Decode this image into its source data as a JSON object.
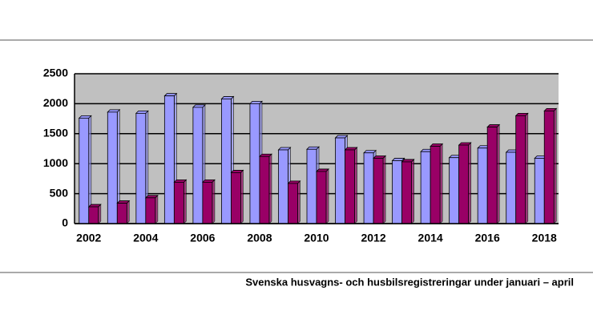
{
  "chart_data": {
    "type": "bar",
    "caption": "Svenska husvagns- och husbilsregistreringar under januari – april",
    "categories": [
      "2002",
      null,
      "2004",
      null,
      "2006",
      null,
      "2008",
      null,
      "2010",
      null,
      "2012",
      null,
      "2014",
      null,
      "2016",
      null,
      "2018"
    ],
    "series": [
      {
        "color": "#9999ff",
        "values": [
          1760,
          1860,
          1840,
          2130,
          1940,
          2080,
          2000,
          1230,
          1240,
          1430,
          1180,
          1050,
          1200,
          1100,
          1260,
          1190,
          1090
        ]
      },
      {
        "color": "#990066",
        "values": [
          280,
          340,
          430,
          690,
          690,
          850,
          1120,
          670,
          870,
          1230,
          1090,
          1030,
          1290,
          1310,
          1610,
          1800,
          1880
        ]
      }
    ],
    "ylim": [
      0,
      2500
    ],
    "yticks": [
      0,
      500,
      1000,
      1500,
      2000,
      2500
    ],
    "grid": true
  }
}
